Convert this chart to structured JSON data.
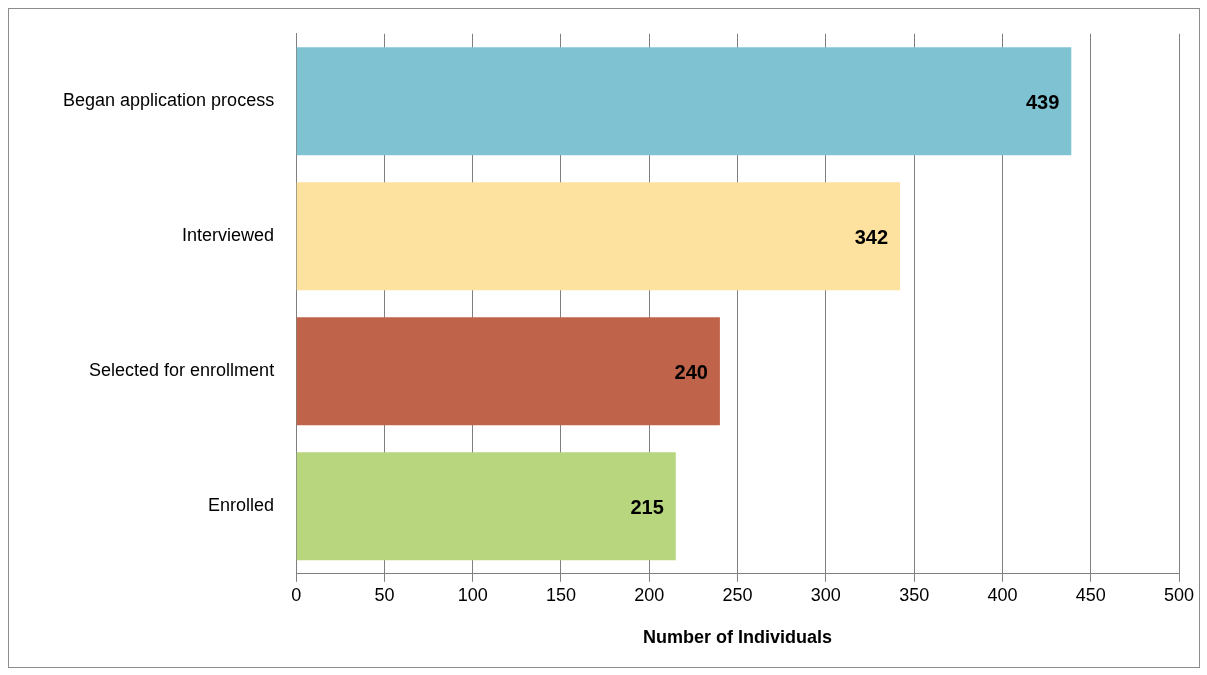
{
  "chart_data": {
    "type": "bar",
    "orientation": "horizontal",
    "categories": [
      "Began application process",
      "Interviewed",
      "Selected for enrollment",
      "Enrolled"
    ],
    "values": [
      439,
      342,
      240,
      215
    ],
    "colors": [
      "#7fc3d3",
      "#fde19e",
      "#c0634b",
      "#b8d67e"
    ],
    "xlim": [
      0,
      500
    ],
    "xticks": [
      0,
      50,
      100,
      150,
      200,
      250,
      300,
      350,
      400,
      450,
      500
    ],
    "xlabel": "Number of Individuals",
    "grid": "x",
    "data_labels": true,
    "legend": false
  }
}
